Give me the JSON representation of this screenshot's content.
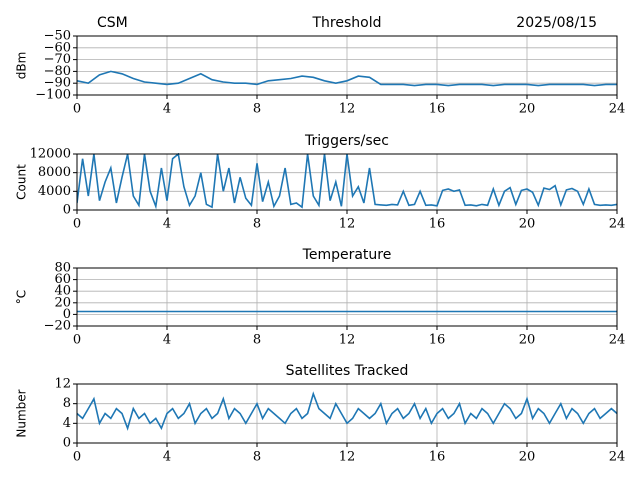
{
  "chart_data": [
    {
      "type": "line",
      "title": "Threshold",
      "left_title": "CSM",
      "right_title": "2025/08/15",
      "ylabel": "dBm",
      "color": "#1f77b4",
      "grid": true,
      "xlim": [
        0,
        24
      ],
      "xticks": [
        0,
        4,
        8,
        12,
        16,
        20,
        24
      ],
      "ylim": [
        -100,
        -50
      ],
      "yticks": [
        {
          "value": -50,
          "label": "−50"
        },
        {
          "value": -60,
          "label": "−60"
        },
        {
          "value": -70,
          "label": "−70"
        },
        {
          "value": -80,
          "label": "−80"
        },
        {
          "value": -90,
          "label": "−90"
        },
        {
          "value": -100,
          "label": "−100"
        }
      ],
      "x": [
        0,
        0.5,
        1,
        1.5,
        2,
        2.5,
        3,
        3.5,
        4,
        4.5,
        5,
        5.5,
        6,
        6.5,
        7,
        7.5,
        8,
        8.5,
        9,
        9.5,
        10,
        10.5,
        11,
        11.5,
        12,
        12.5,
        13,
        13.5,
        14,
        14.5,
        15,
        15.5,
        16,
        16.5,
        17,
        17.5,
        18,
        18.5,
        19,
        19.5,
        20,
        20.5,
        21,
        21.5,
        22,
        22.5,
        23,
        23.5,
        24
      ],
      "values": [
        -88,
        -90,
        -83,
        -80,
        -82,
        -86,
        -89,
        -90,
        -91,
        -90,
        -86,
        -82,
        -87,
        -89,
        -90,
        -90,
        -91,
        -88,
        -87,
        -86,
        -84,
        -85,
        -88,
        -90,
        -88,
        -84,
        -85,
        -91,
        -91,
        -91,
        -92,
        -91,
        -91,
        -92,
        -91,
        -91,
        -91,
        -92,
        -91,
        -91,
        -91,
        -92,
        -91,
        -91,
        -91,
        -91,
        -92,
        -91,
        -91
      ]
    },
    {
      "type": "line",
      "title": "Triggers/sec",
      "ylabel": "Count",
      "color": "#1f77b4",
      "grid": true,
      "xlim": [
        0,
        24
      ],
      "xticks": [
        0,
        4,
        8,
        12,
        16,
        20,
        24
      ],
      "ylim": [
        0,
        12000
      ],
      "yticks": [
        0,
        4000,
        8000,
        12000
      ],
      "x": [
        0,
        0.25,
        0.5,
        0.75,
        1,
        1.25,
        1.5,
        1.75,
        2,
        2.25,
        2.5,
        2.75,
        3,
        3.25,
        3.5,
        3.75,
        4,
        4.25,
        4.5,
        4.75,
        5,
        5.25,
        5.5,
        5.75,
        6,
        6.25,
        6.5,
        6.75,
        7,
        7.25,
        7.5,
        7.75,
        8,
        8.25,
        8.5,
        8.75,
        9,
        9.25,
        9.5,
        9.75,
        10,
        10.25,
        10.5,
        10.75,
        11,
        11.25,
        11.5,
        11.75,
        12,
        12.25,
        12.5,
        12.75,
        13,
        13.25,
        13.5,
        13.75,
        14,
        14.25,
        14.5,
        14.75,
        15,
        15.25,
        15.5,
        15.75,
        16,
        16.25,
        16.5,
        16.75,
        17,
        17.25,
        17.5,
        17.75,
        18,
        18.25,
        18.5,
        18.75,
        19,
        19.25,
        19.5,
        19.75,
        20,
        20.25,
        20.5,
        20.75,
        21,
        21.25,
        21.5,
        21.75,
        22,
        22.25,
        22.5,
        22.75,
        23,
        23.25,
        23.5,
        23.75,
        24
      ],
      "values": [
        1500,
        11000,
        3000,
        12000,
        2000,
        6000,
        9000,
        1500,
        7000,
        12000,
        3000,
        1000,
        12000,
        4000,
        800,
        9000,
        2000,
        11000,
        12000,
        5000,
        1000,
        3000,
        8000,
        1200,
        600,
        12000,
        4000,
        9000,
        1500,
        7000,
        2500,
        1000,
        10000,
        1800,
        6000,
        800,
        3000,
        9000,
        1200,
        1500,
        600,
        12000,
        3000,
        1000,
        12000,
        2000,
        6000,
        800,
        12000,
        3000,
        5000,
        1500,
        9000,
        1200,
        1100,
        1000,
        1200,
        1100,
        4000,
        1000,
        1200,
        4000,
        1000,
        1100,
        900,
        4200,
        4500,
        4000,
        4300,
        1000,
        1100,
        900,
        1200,
        1000,
        4500,
        1000,
        4000,
        4800,
        1200,
        4200,
        4500,
        3800,
        1000,
        4700,
        4400,
        5200,
        1100,
        4300,
        4600,
        4000,
        1200,
        4500,
        1200,
        1000,
        1100,
        1000,
        1200
      ]
    },
    {
      "type": "line",
      "title": "Temperature",
      "ylabel": "°C",
      "color": "#1f77b4",
      "grid": true,
      "xlim": [
        0,
        24
      ],
      "xticks": [
        0,
        4,
        8,
        12,
        16,
        20,
        24
      ],
      "ylim": [
        -20,
        80
      ],
      "yticks": [
        {
          "value": -20,
          "label": "−20"
        },
        0,
        20,
        40,
        60,
        80
      ],
      "x": [
        0,
        24
      ],
      "values": [
        5,
        5
      ]
    },
    {
      "type": "line",
      "title": "Satellites Tracked",
      "ylabel": "Number",
      "color": "#1f77b4",
      "grid": true,
      "xlim": [
        0,
        24
      ],
      "xticks": [
        0,
        4,
        8,
        12,
        16,
        20,
        24
      ],
      "ylim": [
        0,
        12
      ],
      "yticks": [
        0,
        4,
        8,
        12
      ],
      "x": [
        0,
        0.25,
        0.5,
        0.75,
        1,
        1.25,
        1.5,
        1.75,
        2,
        2.25,
        2.5,
        2.75,
        3,
        3.25,
        3.5,
        3.75,
        4,
        4.25,
        4.5,
        4.75,
        5,
        5.25,
        5.5,
        5.75,
        6,
        6.25,
        6.5,
        6.75,
        7,
        7.25,
        7.5,
        7.75,
        8,
        8.25,
        8.5,
        8.75,
        9,
        9.25,
        9.5,
        9.75,
        10,
        10.25,
        10.5,
        10.75,
        11,
        11.25,
        11.5,
        11.75,
        12,
        12.25,
        12.5,
        12.75,
        13,
        13.25,
        13.5,
        13.75,
        14,
        14.25,
        14.5,
        14.75,
        15,
        15.25,
        15.5,
        15.75,
        16,
        16.25,
        16.5,
        16.75,
        17,
        17.25,
        17.5,
        17.75,
        18,
        18.25,
        18.5,
        18.75,
        19,
        19.25,
        19.5,
        19.75,
        20,
        20.25,
        20.5,
        20.75,
        21,
        21.25,
        21.5,
        21.75,
        22,
        22.25,
        22.5,
        22.75,
        23,
        23.25,
        23.5,
        23.75,
        24
      ],
      "values": [
        6,
        5,
        7,
        9,
        4,
        6,
        5,
        7,
        6,
        3,
        7,
        5,
        6,
        4,
        5,
        3,
        6,
        7,
        5,
        6,
        8,
        4,
        6,
        7,
        5,
        6,
        9,
        5,
        7,
        6,
        4,
        6,
        8,
        5,
        7,
        6,
        5,
        4,
        6,
        7,
        5,
        6,
        10,
        7,
        6,
        5,
        8,
        6,
        4,
        5,
        7,
        6,
        5,
        6,
        8,
        4,
        6,
        7,
        5,
        6,
        8,
        5,
        7,
        4,
        6,
        7,
        5,
        6,
        8,
        4,
        6,
        5,
        7,
        6,
        4,
        6,
        8,
        7,
        5,
        6,
        9,
        5,
        7,
        6,
        4,
        6,
        8,
        5,
        7,
        6,
        4,
        6,
        7,
        5,
        6,
        7,
        6
      ]
    }
  ]
}
